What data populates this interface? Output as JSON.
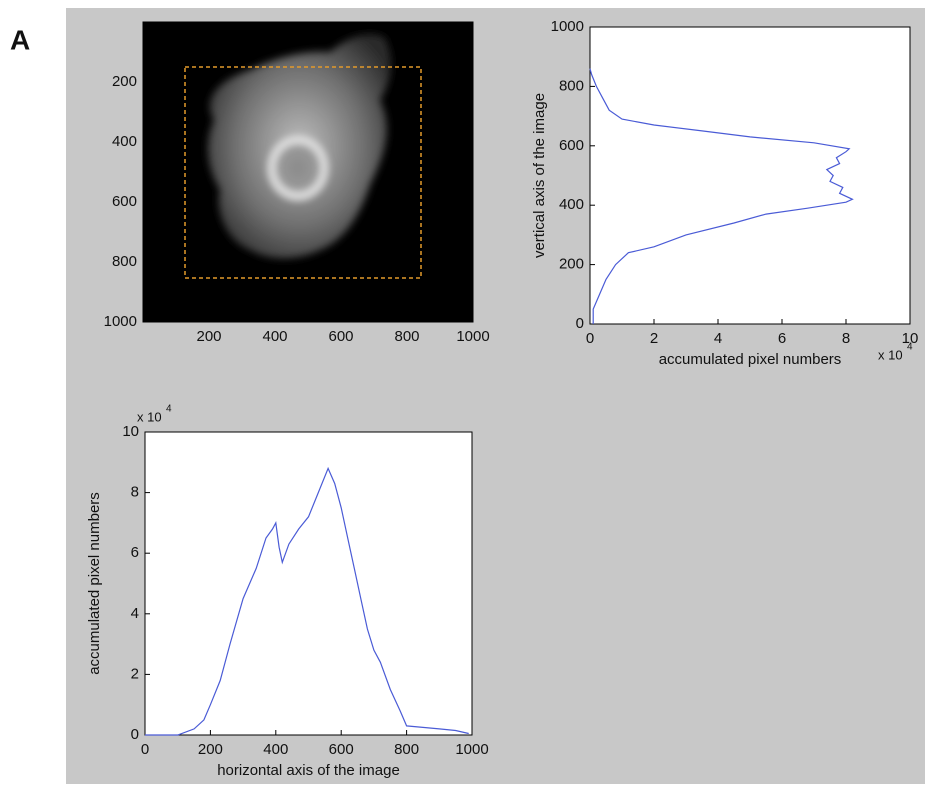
{
  "panel_label": "A",
  "chart_data": [
    {
      "type": "image",
      "xlim": [
        0,
        1000
      ],
      "ylim": [
        0,
        1000
      ],
      "y_reversed": true,
      "xticks": [
        200,
        400,
        600,
        800,
        1000
      ],
      "yticks": [
        200,
        400,
        600,
        800,
        1000
      ]
    },
    {
      "type": "line",
      "orientation": "vertical",
      "color": "#4a5bd6",
      "xlabel": "accumulated pixel numbers",
      "ylabel": "vertical axis of the image",
      "multiplier": "x 10",
      "multiplier_exponent": "4",
      "xlim": [
        0,
        10
      ],
      "ylim": [
        0,
        1000
      ],
      "xticks": [
        0,
        2,
        4,
        6,
        8,
        10
      ],
      "yticks": [
        0,
        200,
        400,
        600,
        800,
        1000
      ],
      "y": [
        0,
        50,
        100,
        150,
        200,
        240,
        260,
        300,
        340,
        370,
        390,
        410,
        420,
        440,
        460,
        480,
        500,
        520,
        540,
        560,
        580,
        590,
        610,
        630,
        650,
        670,
        690,
        720,
        760,
        800,
        840,
        860
      ],
      "values": [
        0.1,
        0.1,
        0.3,
        0.5,
        0.8,
        1.2,
        2,
        3,
        4.5,
        5.5,
        6.8,
        8,
        8.2,
        7.8,
        7.9,
        7.5,
        7.6,
        7.4,
        7.8,
        7.7,
        8,
        8.1,
        7,
        5,
        3.5,
        2,
        1,
        0.6,
        0.4,
        0.2,
        0.05,
        0
      ]
    },
    {
      "type": "line",
      "orientation": "horizontal",
      "color": "#4a5bd6",
      "xlabel": "horizontal axis of the image",
      "ylabel": "accumulated pixel numbers",
      "multiplier": "x 10",
      "multiplier_exponent": "4",
      "xlim": [
        0,
        1000
      ],
      "ylim": [
        0,
        10
      ],
      "xticks": [
        0,
        200,
        400,
        600,
        800,
        1000
      ],
      "yticks": [
        0,
        2,
        4,
        6,
        8,
        10
      ],
      "x": [
        0,
        100,
        150,
        180,
        200,
        230,
        260,
        300,
        340,
        370,
        390,
        400,
        410,
        420,
        440,
        470,
        500,
        530,
        560,
        580,
        600,
        620,
        640,
        660,
        680,
        700,
        720,
        750,
        780,
        800,
        850,
        900,
        950,
        990
      ],
      "values": [
        0,
        0,
        0.2,
        0.5,
        1,
        1.8,
        3,
        4.5,
        5.5,
        6.5,
        6.8,
        7,
        6.2,
        5.7,
        6.3,
        6.8,
        7.2,
        8,
        8.8,
        8.3,
        7.5,
        6.5,
        5.5,
        4.5,
        3.5,
        2.8,
        2.4,
        1.5,
        0.8,
        0.3,
        0.25,
        0.2,
        0.15,
        0.05
      ]
    }
  ]
}
